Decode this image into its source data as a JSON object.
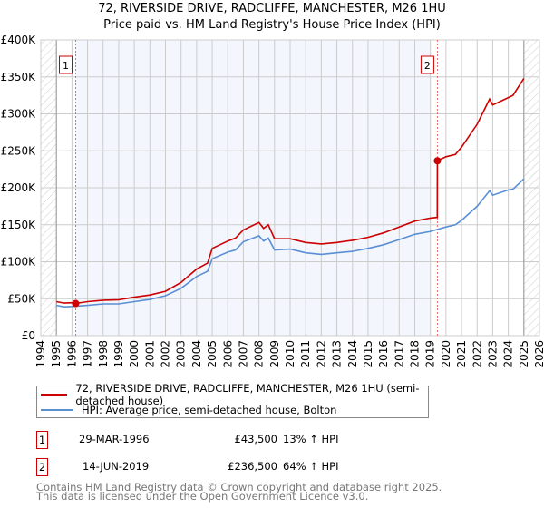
{
  "chart_data": {
    "type": "line",
    "title": "72, RIVERSIDE DRIVE, RADCLIFFE, MANCHESTER, M26 1HU",
    "subtitle": "Price paid vs. HM Land Registry's House Price Index (HPI)",
    "xlim": [
      1994,
      2026
    ],
    "ylim": [
      0,
      400000
    ],
    "x_ticks": [
      "1994",
      "1995",
      "1996",
      "1997",
      "1998",
      "1999",
      "2000",
      "2001",
      "2002",
      "2003",
      "2004",
      "2005",
      "2006",
      "2007",
      "2008",
      "2009",
      "2010",
      "2011",
      "2012",
      "2013",
      "2014",
      "2015",
      "2016",
      "2017",
      "2018",
      "2019",
      "2020",
      "2021",
      "2022",
      "2023",
      "2024",
      "2025",
      "2026"
    ],
    "y_ticks": [
      {
        "v": 0,
        "label": "£0"
      },
      {
        "v": 50000,
        "label": "£50K"
      },
      {
        "v": 100000,
        "label": "£100K"
      },
      {
        "v": 150000,
        "label": "£150K"
      },
      {
        "v": 200000,
        "label": "£200K"
      },
      {
        "v": 250000,
        "label": "£250K"
      },
      {
        "v": 300000,
        "label": "£300K"
      },
      {
        "v": 350000,
        "label": "£350K"
      },
      {
        "v": 400000,
        "label": "£400K"
      }
    ],
    "grid": true,
    "series": [
      {
        "name": "72, RIVERSIDE DRIVE, RADCLIFFE, MANCHESTER, M26 1HU (semi-detached house)",
        "color": "#cc0000",
        "x": [
          1995,
          1995.5,
          1996,
          1996.24,
          1997,
          1998,
          1999,
          2000,
          2001,
          2002,
          2003,
          2004,
          2004.7,
          2005,
          2006,
          2006.5,
          2007,
          2008,
          2008.3,
          2008.6,
          2009,
          2010,
          2011,
          2012,
          2013,
          2014,
          2015,
          2016,
          2017,
          2018,
          2019,
          2019.44,
          2019.45,
          2020,
          2020.6,
          2021,
          2022,
          2022.8,
          2023,
          2024,
          2024.3,
          2025
        ],
        "y": [
          46000,
          44000,
          44500,
          43500,
          46000,
          48000,
          48500,
          52000,
          55000,
          60000,
          72000,
          90000,
          98000,
          118000,
          128000,
          132000,
          143000,
          153000,
          145000,
          150000,
          131000,
          131000,
          126000,
          124000,
          126000,
          129000,
          133000,
          139000,
          147000,
          155000,
          159000,
          160000,
          236500,
          242000,
          245000,
          255000,
          286000,
          320000,
          312000,
          322000,
          325000,
          348000
        ]
      },
      {
        "name": "HPI: Average price, semi-detached house, Bolton",
        "color": "#5b8fd4",
        "x": [
          1995,
          1995.5,
          1996,
          1997,
          1998,
          1999,
          2000,
          2001,
          2002,
          2003,
          2004,
          2004.7,
          2005,
          2006,
          2006.5,
          2007,
          2008,
          2008.3,
          2008.6,
          2009,
          2010,
          2011,
          2012,
          2013,
          2014,
          2015,
          2016,
          2017,
          2018,
          2019,
          2020,
          2020.6,
          2021,
          2022,
          2022.8,
          2023,
          2024,
          2024.3,
          2025
        ],
        "y": [
          41000,
          39000,
          39500,
          41000,
          43000,
          43000,
          46000,
          49000,
          54000,
          64000,
          80000,
          87000,
          104000,
          113000,
          116000,
          127000,
          135000,
          128000,
          132000,
          116000,
          117000,
          112000,
          110000,
          112000,
          114000,
          118000,
          123000,
          130000,
          137000,
          141000,
          147000,
          150000,
          156000,
          175000,
          196000,
          190000,
          197000,
          198000,
          212000
        ]
      }
    ],
    "sales": [
      {
        "id": "1",
        "x": 1996.24,
        "y": 43500
      },
      {
        "id": "2",
        "x": 2019.45,
        "y": 236500
      }
    ],
    "shaded_range": [
      1996.24,
      2019.0
    ],
    "hatched_ranges": [
      [
        1994,
        1995
      ],
      [
        2025,
        2026
      ]
    ]
  },
  "legend": {
    "property": "72, RIVERSIDE DRIVE, RADCLIFFE, MANCHESTER, M26 1HU (semi-detached house)",
    "hpi": "HPI: Average price, semi-detached house, Bolton"
  },
  "transactions": [
    {
      "id": "1",
      "date": "29-MAR-1996",
      "price": "£43,500",
      "hpi": "13% ↑ HPI"
    },
    {
      "id": "2",
      "date": "14-JUN-2019",
      "price": "£236,500",
      "hpi": "64% ↑ HPI"
    }
  ],
  "footer": {
    "line1": "Contains HM Land Registry data © Crown copyright and database right 2025.",
    "line2": "This data is licensed under the Open Government Licence v3.0."
  }
}
